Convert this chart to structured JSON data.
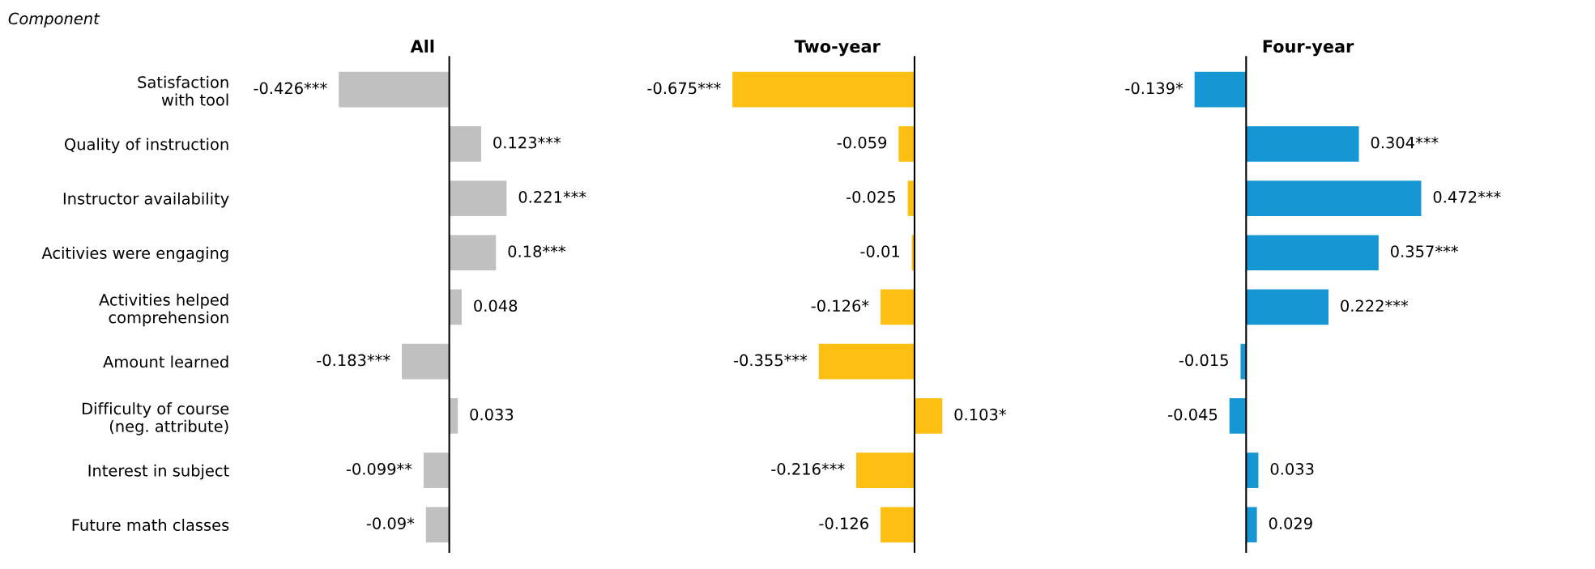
{
  "chart_data": [
    {
      "type": "bar",
      "orientation": "horizontal",
      "title": "All",
      "ylabel": "Component",
      "tick_labels": "y",
      "grid": false,
      "legend": false,
      "categories": [
        "Satisfaction\nwith tool",
        "Quality of instruction",
        "Instructor availability",
        "Acitivies were engaging",
        "Activities helped\ncomprehension",
        "Amount learned",
        "Difficulty of course\n(neg. attribute)",
        "Interest in subject",
        "Future math classes"
      ],
      "series": [
        {
          "color": "#c0c0c0",
          "values": [
            -0.426,
            0.123,
            0.221,
            0.18,
            0.048,
            -0.183,
            0.033,
            -0.099,
            -0.09
          ],
          "value_labels": [
            "-0.426***",
            "0.123***",
            "0.221***",
            "0.18***",
            "0.048",
            "-0.183***",
            "0.033",
            "-0.099**",
            "-0.09*"
          ]
        }
      ]
    },
    {
      "type": "bar",
      "orientation": "horizontal",
      "title": "Two-year",
      "tick_labels": false,
      "grid": false,
      "legend": false,
      "categories": [
        null,
        null,
        null,
        null,
        null,
        null,
        null,
        null,
        null
      ],
      "series": [
        {
          "color": "#fdbf11",
          "values": [
            -0.675,
            -0.059,
            -0.025,
            -0.01,
            -0.126,
            -0.355,
            0.103,
            -0.216,
            -0.126
          ],
          "value_labels": [
            "-0.675***",
            "-0.059",
            "-0.025",
            "-0.01",
            "-0.126*",
            "-0.355***",
            "0.103*",
            "-0.216***",
            "-0.126"
          ]
        }
      ]
    },
    {
      "type": "bar",
      "orientation": "horizontal",
      "title": "Four-year",
      "tick_labels": false,
      "grid": false,
      "legend": false,
      "categories": [
        null,
        null,
        null,
        null,
        null,
        null,
        null,
        null,
        null
      ],
      "series": [
        {
          "color": "#1696d2",
          "values": [
            -0.139,
            0.304,
            0.472,
            0.357,
            0.222,
            -0.015,
            -0.045,
            0.033,
            0.029
          ],
          "value_labels": [
            "-0.139*",
            "0.304***",
            "0.472***",
            "0.357***",
            "0.222***",
            "-0.015",
            "-0.045",
            "0.033",
            "0.029"
          ]
        }
      ]
    }
  ]
}
